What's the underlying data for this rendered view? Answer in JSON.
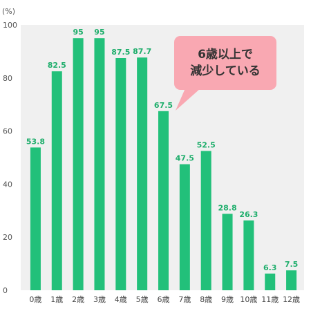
{
  "chart_data": {
    "type": "bar",
    "title": "",
    "xlabel": "",
    "ylabel": "",
    "unit_label": "(%)",
    "categories": [
      "0歳",
      "1歳",
      "2歳",
      "3歳",
      "4歳",
      "5歳",
      "6歳",
      "7歳",
      "8歳",
      "9歳",
      "10歳",
      "11歳",
      "12歳"
    ],
    "series": [
      {
        "values": [
          53.8,
          82.5,
          95,
          95,
          87.5,
          87.7,
          67.5,
          47.5,
          52.5,
          28.8,
          26.3,
          6.3,
          7.5
        ]
      }
    ],
    "data_labels": [
      "53.8",
      "82.5",
      "95",
      "95",
      "87.5",
      "87.7",
      "67.5",
      "47.5",
      "52.5",
      "28.8",
      "26.3",
      "6.3",
      "7.5"
    ],
    "ylim": [
      0,
      100
    ],
    "yticks": [
      0,
      20,
      40,
      60,
      80,
      100
    ],
    "grid": false,
    "annotation": {
      "lines": [
        "6歳以上で",
        "減少している"
      ]
    },
    "colors": {
      "bar": "#22c07a",
      "label": "#1fae6c",
      "plot_bg": "#f0f0f0",
      "callout_bg": "#f9a8b2"
    }
  }
}
